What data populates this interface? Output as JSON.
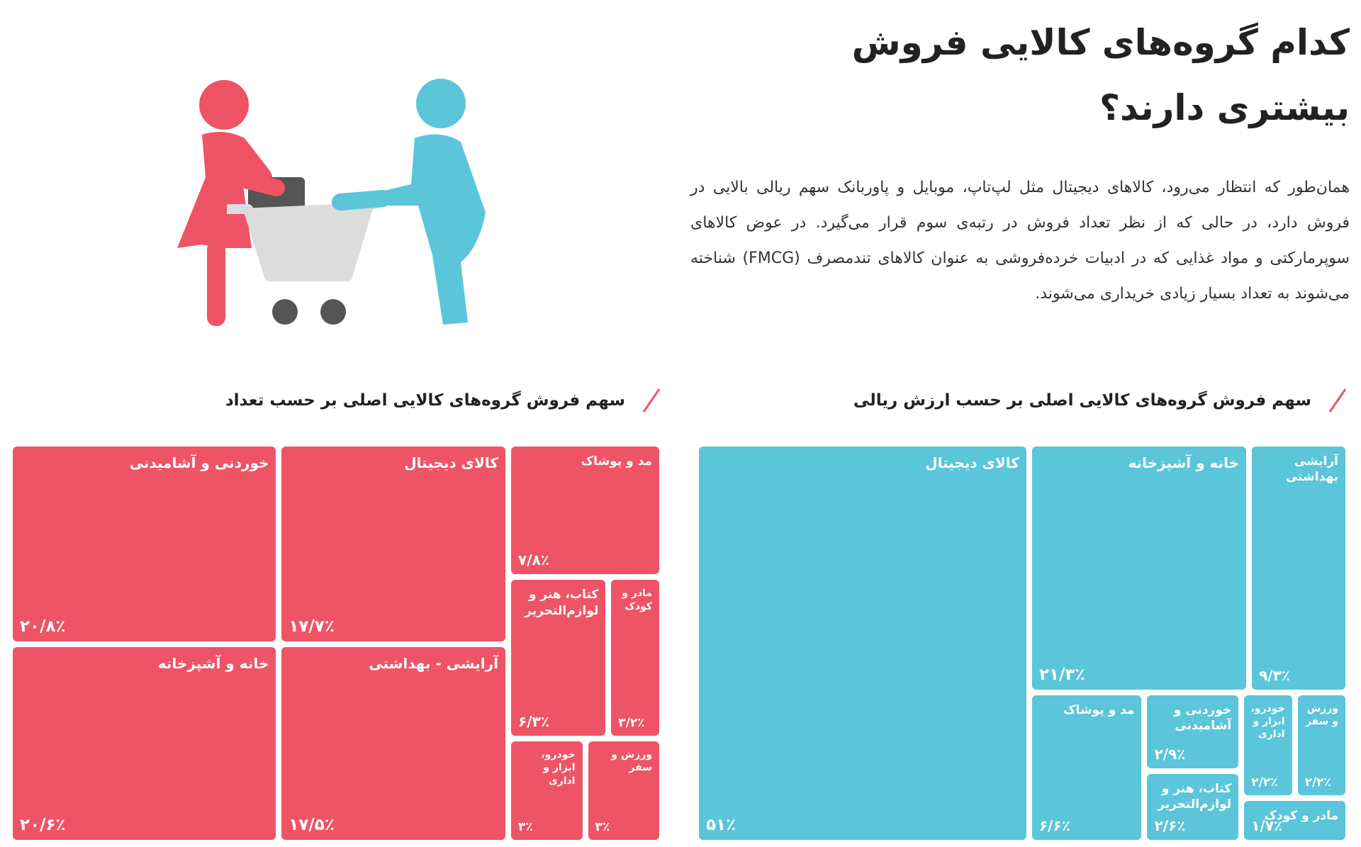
{
  "header": {
    "title": "کدام گروه‌های کالایی فروش بیشتری دارند؟",
    "body": "همان‌طور که انتظار می‌رود، کالاهای دیجیتال مثل لپ‌تاپ، موبایل و پاوربانک سهم ریالی بالایی در فروش دارد، در حالی که از نظر تعداد فروش در رتبه‌ی سوم قرار می‌گیرد. در عوض کالاهای سوپرمارکتی و مواد غذایی که در ادبیات خرده‌فروشی به عنوان کالاهای تندمصرف (FMCG) شناخته می‌شوند به تعداد بسیار زیادی خریداری می‌شوند."
  },
  "chart_data": [
    {
      "type": "treemap",
      "title": "سهم فروش گروه‌های کالایی اصلی بر حسب ارزش ریالی",
      "color": "#5bc5d9",
      "categories": [
        "کالای دیجیتال",
        "خانه و آشپزخانه",
        "آرایشی بهداشتی",
        "مد و پوشاک",
        "خوردنی و آشامیدنی",
        "کتاب، هنر و لوازم‌التحریر",
        "خودرو، ابزار و اداری",
        "ورزش و سفر",
        "مادر و کودک"
      ],
      "values": [
        51,
        21.3,
        9.3,
        6.6,
        2.9,
        2.6,
        2.2,
        2.2,
        1.7
      ],
      "value_labels": [
        "۵۱٪",
        "۲۱/۳٪",
        "۹/۳٪",
        "۶/۶٪",
        "۲/۹٪",
        "۲/۶٪",
        "۲/۲٪",
        "۲/۲٪",
        "۱/۷٪"
      ]
    },
    {
      "type": "treemap",
      "title": "سهم فروش گروه‌های کالایی اصلی بر حسب تعداد",
      "color": "#ee5466",
      "categories": [
        "خوردنی و آشامیدنی",
        "خانه و آشپزخانه",
        "کالای دیجیتال",
        "آرایشی - بهداشتی",
        "مد و پوشاک",
        "کتاب، هنر و لوازم‌التحریر",
        "مادر و کودک",
        "خودرو، ابزار و اداری",
        "ورزش و سفر"
      ],
      "values": [
        20.8,
        20.6,
        17.7,
        17.5,
        7.8,
        6.3,
        3.2,
        3,
        3
      ],
      "value_labels": [
        "۲۰/۸٪",
        "۲۰/۶٪",
        "۱۷/۷٪",
        "۱۷/۵٪",
        "۷/۸٪",
        "۶/۳٪",
        "۳/۲٪",
        "۳٪",
        "۳٪"
      ]
    }
  ]
}
